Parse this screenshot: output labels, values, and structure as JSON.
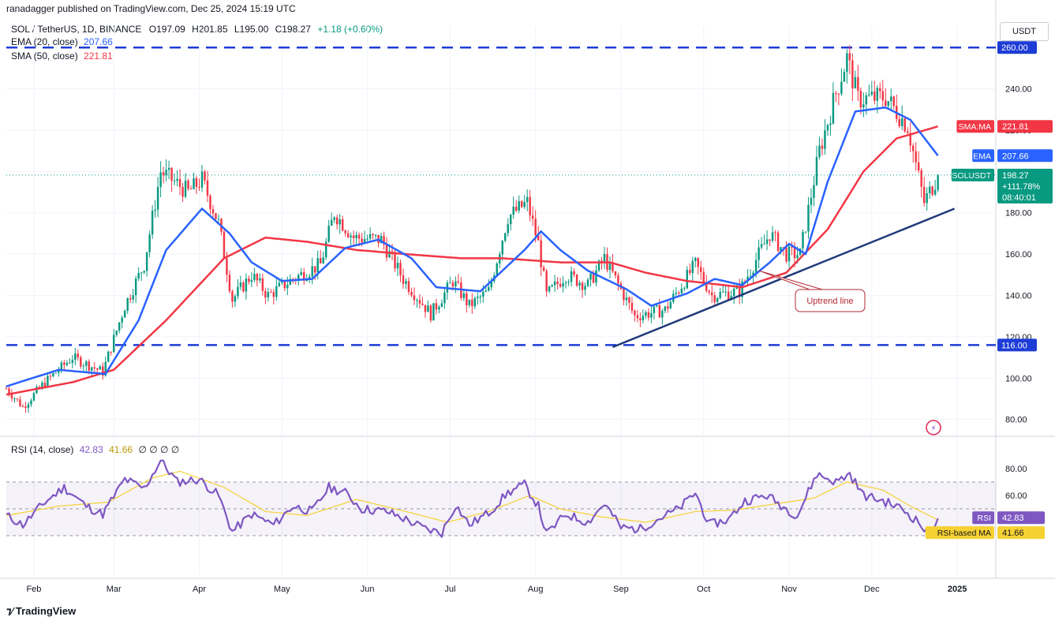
{
  "header": {
    "published": "ranadagger published on TradingView.com, Dec 25, 2024 15:19 UTC"
  },
  "legend": {
    "symbol": "SOL / TetherUS, 1D, BINANCE",
    "open": "O197.09",
    "high": "H201.85",
    "low": "L195.00",
    "close": "C198.27",
    "change": "+1.18 (+0.60%)",
    "ema_label": "EMA (20, close)",
    "ema_value": "207.66",
    "sma_label": "SMA (50, close)",
    "sma_value": "221.81"
  },
  "rsi_legend": {
    "label": "RSI (14, close)",
    "rsi_value": "42.83",
    "ma_value": "41.66",
    "extra": "∅  ∅  ∅  ∅"
  },
  "currency_button": "USDT",
  "footer": {
    "brand": "TradingView"
  },
  "colors": {
    "up": "#089981",
    "down": "#f23645",
    "ema": "#2962ff",
    "sma": "#f23645",
    "rsi": "#7e57c2",
    "rsi_ma": "#f5d132",
    "dash": "#1e3cd6",
    "trend": "#1f3a7a",
    "annotation": "#b22833"
  },
  "chart_data": {
    "type": "candlestick",
    "symbol": "SOL / TetherUS",
    "interval": "1D",
    "y_range": [
      73,
      270
    ],
    "y_ticks": [
      "80.00",
      "100.00",
      "120.00",
      "140.00",
      "160.00",
      "180.00",
      "200.00",
      "220.00",
      "240.00",
      "260.00"
    ],
    "x_ticks": [
      "Feb",
      "Mar",
      "Apr",
      "May",
      "Jun",
      "Jul",
      "Aug",
      "Sep",
      "Oct",
      "Nov",
      "Dec",
      "2025"
    ],
    "x_tick_dates": [
      "2024-02-01",
      "2024-03-01",
      "2024-04-01",
      "2024-05-01",
      "2024-06-01",
      "2024-07-01",
      "2024-08-01",
      "2024-09-01",
      "2024-10-01",
      "2024-11-01",
      "2024-12-01",
      "2025-01-01"
    ],
    "x_range_dates": [
      "2024-01-22",
      "2025-01-15"
    ],
    "horizontal_lines": [
      {
        "value": 260,
        "label": "260.00"
      },
      {
        "value": 116,
        "label": "116.00"
      }
    ],
    "trendline": {
      "start": {
        "date": "2024-08-29",
        "price": 115
      },
      "end": {
        "date": "2024-12-31",
        "price": 182
      }
    },
    "annotation": {
      "text": "Uptrend line",
      "points_to": {
        "date": "2024-10-21",
        "price": 152
      }
    },
    "price_labels": [
      {
        "name": "SMA:MA",
        "value": "221.81",
        "price": 221.81
      },
      {
        "name": "EMA",
        "value": "207.66",
        "price": 207.66
      },
      {
        "name": "SOLUSDT",
        "value": "198.27",
        "sub1": "+111.78%",
        "sub2": "08:40:01",
        "price": 198.27
      }
    ],
    "price_anchors": [
      [
        "2024-01-22",
        95
      ],
      [
        "2024-01-28",
        86
      ],
      [
        "2024-02-05",
        98
      ],
      [
        "2024-02-15",
        110
      ],
      [
        "2024-02-26",
        103
      ],
      [
        "2024-03-05",
        135
      ],
      [
        "2024-03-12",
        155
      ],
      [
        "2024-03-18",
        200
      ],
      [
        "2024-03-28",
        190
      ],
      [
        "2024-04-02",
        196
      ],
      [
        "2024-04-08",
        175
      ],
      [
        "2024-04-13",
        138
      ],
      [
        "2024-04-20",
        150
      ],
      [
        "2024-04-26",
        140
      ],
      [
        "2024-05-05",
        148
      ],
      [
        "2024-05-15",
        155
      ],
      [
        "2024-05-20",
        180
      ],
      [
        "2024-05-27",
        168
      ],
      [
        "2024-06-06",
        167
      ],
      [
        "2024-06-14",
        148
      ],
      [
        "2024-06-24",
        131
      ],
      [
        "2024-07-02",
        147
      ],
      [
        "2024-07-08",
        135
      ],
      [
        "2024-07-15",
        142
      ],
      [
        "2024-07-22",
        178
      ],
      [
        "2024-07-29",
        185
      ],
      [
        "2024-08-02",
        165
      ],
      [
        "2024-08-05",
        140
      ],
      [
        "2024-08-12",
        150
      ],
      [
        "2024-08-20",
        145
      ],
      [
        "2024-08-26",
        158
      ],
      [
        "2024-09-06",
        130
      ],
      [
        "2024-09-17",
        133
      ],
      [
        "2024-09-28",
        155
      ],
      [
        "2024-10-04",
        140
      ],
      [
        "2024-10-14",
        142
      ],
      [
        "2024-10-25",
        170
      ],
      [
        "2024-10-31",
        160
      ],
      [
        "2024-11-05",
        160
      ],
      [
        "2024-11-12",
        210
      ],
      [
        "2024-11-18",
        238
      ],
      [
        "2024-11-22",
        255
      ],
      [
        "2024-11-26",
        235
      ],
      [
        "2024-12-06",
        236
      ],
      [
        "2024-12-14",
        222
      ],
      [
        "2024-12-20",
        185
      ],
      [
        "2024-12-25",
        198
      ]
    ],
    "ema20_anchors": [
      [
        "2024-01-22",
        96
      ],
      [
        "2024-02-10",
        104
      ],
      [
        "2024-02-27",
        102
      ],
      [
        "2024-03-10",
        128
      ],
      [
        "2024-03-20",
        162
      ],
      [
        "2024-04-02",
        182
      ],
      [
        "2024-04-12",
        170
      ],
      [
        "2024-04-20",
        156
      ],
      [
        "2024-05-01",
        147
      ],
      [
        "2024-05-12",
        148
      ],
      [
        "2024-05-24",
        163
      ],
      [
        "2024-06-05",
        167
      ],
      [
        "2024-06-17",
        158
      ],
      [
        "2024-06-26",
        144
      ],
      [
        "2024-07-12",
        142
      ],
      [
        "2024-07-28",
        162
      ],
      [
        "2024-08-03",
        171
      ],
      [
        "2024-08-10",
        162
      ],
      [
        "2024-08-20",
        152
      ],
      [
        "2024-09-03",
        143
      ],
      [
        "2024-09-12",
        135
      ],
      [
        "2024-09-25",
        141
      ],
      [
        "2024-10-05",
        148
      ],
      [
        "2024-10-15",
        145
      ],
      [
        "2024-10-25",
        156
      ],
      [
        "2024-11-01",
        165
      ],
      [
        "2024-11-07",
        160
      ],
      [
        "2024-11-15",
        195
      ],
      [
        "2024-11-25",
        229
      ],
      [
        "2024-12-06",
        231
      ],
      [
        "2024-12-15",
        225
      ],
      [
        "2024-12-25",
        207.66
      ]
    ],
    "sma50_anchors": [
      [
        "2024-01-22",
        92
      ],
      [
        "2024-02-15",
        98
      ],
      [
        "2024-03-01",
        104
      ],
      [
        "2024-03-20",
        128
      ],
      [
        "2024-04-10",
        158
      ],
      [
        "2024-04-25",
        168
      ],
      [
        "2024-05-10",
        166
      ],
      [
        "2024-05-28",
        162
      ],
      [
        "2024-06-15",
        160
      ],
      [
        "2024-07-05",
        158
      ],
      [
        "2024-07-20",
        158
      ],
      [
        "2024-08-10",
        156
      ],
      [
        "2024-08-28",
        156
      ],
      [
        "2024-09-10",
        151
      ],
      [
        "2024-09-25",
        147
      ],
      [
        "2024-10-15",
        144
      ],
      [
        "2024-10-31",
        151
      ],
      [
        "2024-11-15",
        172
      ],
      [
        "2024-11-28",
        200
      ],
      [
        "2024-12-10",
        216
      ],
      [
        "2024-12-25",
        221.81
      ]
    ],
    "rsi": {
      "y_range": [
        0,
        100
      ],
      "levels": [
        70,
        50,
        30
      ],
      "y_ticks": [
        "60.00",
        "80.00"
      ],
      "current": "42.83",
      "ma_current": "41.66",
      "labels": [
        {
          "name": "RSI",
          "value": "42.83",
          "level": 42.83
        },
        {
          "name": "RSI-based MA",
          "value": "41.66",
          "level": 41.66
        }
      ],
      "rsi_anchors": [
        [
          "2024-01-22",
          45
        ],
        [
          "2024-01-28",
          38
        ],
        [
          "2024-02-05",
          55
        ],
        [
          "2024-02-12",
          66
        ],
        [
          "2024-02-20",
          52
        ],
        [
          "2024-02-26",
          46
        ],
        [
          "2024-03-05",
          72
        ],
        [
          "2024-03-12",
          65
        ],
        [
          "2024-03-18",
          86
        ],
        [
          "2024-03-24",
          70
        ],
        [
          "2024-04-01",
          72
        ],
        [
          "2024-04-08",
          60
        ],
        [
          "2024-04-13",
          33
        ],
        [
          "2024-04-20",
          46
        ],
        [
          "2024-04-28",
          38
        ],
        [
          "2024-05-05",
          52
        ],
        [
          "2024-05-12",
          48
        ],
        [
          "2024-05-18",
          66
        ],
        [
          "2024-05-24",
          62
        ],
        [
          "2024-05-30",
          50
        ],
        [
          "2024-06-08",
          48
        ],
        [
          "2024-06-14",
          43
        ],
        [
          "2024-06-22",
          35
        ],
        [
          "2024-06-28",
          32
        ],
        [
          "2024-07-03",
          53
        ],
        [
          "2024-07-08",
          38
        ],
        [
          "2024-07-15",
          47
        ],
        [
          "2024-07-22",
          62
        ],
        [
          "2024-07-28",
          68
        ],
        [
          "2024-08-02",
          52
        ],
        [
          "2024-08-05",
          31
        ],
        [
          "2024-08-12",
          46
        ],
        [
          "2024-08-20",
          40
        ],
        [
          "2024-08-26",
          54
        ],
        [
          "2024-09-01",
          36
        ],
        [
          "2024-09-08",
          35
        ],
        [
          "2024-09-15",
          43
        ],
        [
          "2024-09-22",
          50
        ],
        [
          "2024-09-28",
          62
        ],
        [
          "2024-10-03",
          38
        ],
        [
          "2024-10-10",
          42
        ],
        [
          "2024-10-16",
          56
        ],
        [
          "2024-10-24",
          60
        ],
        [
          "2024-10-31",
          50
        ],
        [
          "2024-11-04",
          45
        ],
        [
          "2024-11-11",
          76
        ],
        [
          "2024-11-18",
          70
        ],
        [
          "2024-11-23",
          76
        ],
        [
          "2024-11-28",
          60
        ],
        [
          "2024-12-05",
          56
        ],
        [
          "2024-12-12",
          50
        ],
        [
          "2024-12-18",
          40
        ],
        [
          "2024-12-21",
          32
        ],
        [
          "2024-12-25",
          42.83
        ]
      ],
      "rsi_ma_anchors": [
        [
          "2024-01-22",
          45
        ],
        [
          "2024-02-10",
          52
        ],
        [
          "2024-02-28",
          55
        ],
        [
          "2024-03-15",
          73
        ],
        [
          "2024-03-25",
          78
        ],
        [
          "2024-04-10",
          66
        ],
        [
          "2024-04-25",
          48
        ],
        [
          "2024-05-10",
          45
        ],
        [
          "2024-05-28",
          57
        ],
        [
          "2024-06-15",
          48
        ],
        [
          "2024-06-30",
          40
        ],
        [
          "2024-07-15",
          48
        ],
        [
          "2024-07-30",
          60
        ],
        [
          "2024-08-10",
          50
        ],
        [
          "2024-08-25",
          44
        ],
        [
          "2024-09-10",
          40
        ],
        [
          "2024-09-28",
          48
        ],
        [
          "2024-10-12",
          49
        ],
        [
          "2024-10-28",
          54
        ],
        [
          "2024-11-10",
          58
        ],
        [
          "2024-11-22",
          70
        ],
        [
          "2024-12-05",
          64
        ],
        [
          "2024-12-15",
          52
        ],
        [
          "2024-12-25",
          41.66
        ]
      ]
    }
  }
}
